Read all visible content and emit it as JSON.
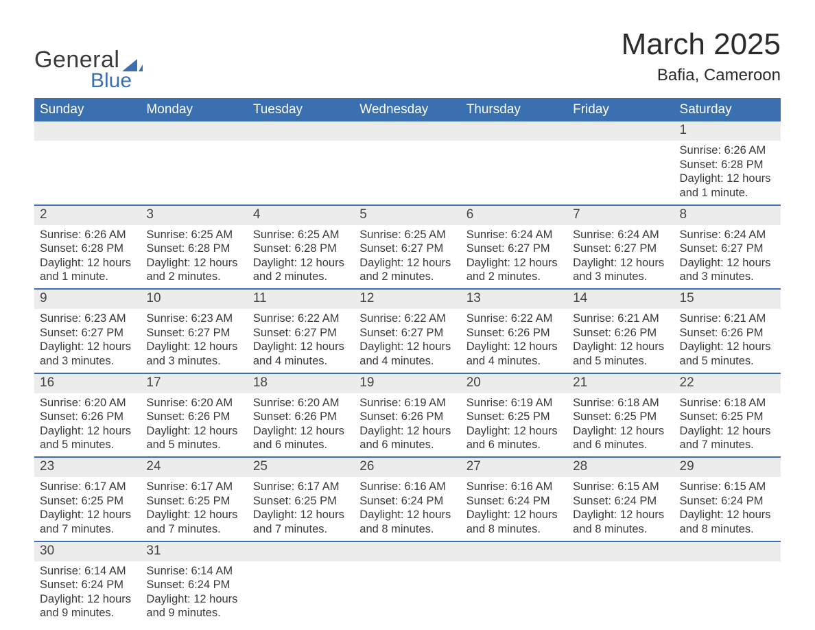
{
  "logo": {
    "text_top": "General",
    "text_bottom": "Blue",
    "accent_color": "#3a6fb0"
  },
  "header": {
    "title": "March 2025",
    "subtitle": "Bafia, Cameroon"
  },
  "styling": {
    "header_bg": "#3a6fb0",
    "header_fg": "#ffffff",
    "daynum_bg": "#ececec",
    "row_divider": "#3a6fb0",
    "body_bg": "#ffffff",
    "text_color": "#3a3a3a",
    "title_fontsize": 44,
    "subtitle_fontsize": 24,
    "header_fontsize": 19,
    "cell_fontsize": 16.5
  },
  "calendar": {
    "columns": [
      "Sunday",
      "Monday",
      "Tuesday",
      "Wednesday",
      "Thursday",
      "Friday",
      "Saturday"
    ],
    "weeks": [
      [
        null,
        null,
        null,
        null,
        null,
        null,
        {
          "n": "1",
          "sr": "Sunrise: 6:26 AM",
          "ss": "Sunset: 6:28 PM",
          "dl1": "Daylight: 12 hours",
          "dl2": "and 1 minute."
        }
      ],
      [
        {
          "n": "2",
          "sr": "Sunrise: 6:26 AM",
          "ss": "Sunset: 6:28 PM",
          "dl1": "Daylight: 12 hours",
          "dl2": "and 1 minute."
        },
        {
          "n": "3",
          "sr": "Sunrise: 6:25 AM",
          "ss": "Sunset: 6:28 PM",
          "dl1": "Daylight: 12 hours",
          "dl2": "and 2 minutes."
        },
        {
          "n": "4",
          "sr": "Sunrise: 6:25 AM",
          "ss": "Sunset: 6:28 PM",
          "dl1": "Daylight: 12 hours",
          "dl2": "and 2 minutes."
        },
        {
          "n": "5",
          "sr": "Sunrise: 6:25 AM",
          "ss": "Sunset: 6:27 PM",
          "dl1": "Daylight: 12 hours",
          "dl2": "and 2 minutes."
        },
        {
          "n": "6",
          "sr": "Sunrise: 6:24 AM",
          "ss": "Sunset: 6:27 PM",
          "dl1": "Daylight: 12 hours",
          "dl2": "and 2 minutes."
        },
        {
          "n": "7",
          "sr": "Sunrise: 6:24 AM",
          "ss": "Sunset: 6:27 PM",
          "dl1": "Daylight: 12 hours",
          "dl2": "and 3 minutes."
        },
        {
          "n": "8",
          "sr": "Sunrise: 6:24 AM",
          "ss": "Sunset: 6:27 PM",
          "dl1": "Daylight: 12 hours",
          "dl2": "and 3 minutes."
        }
      ],
      [
        {
          "n": "9",
          "sr": "Sunrise: 6:23 AM",
          "ss": "Sunset: 6:27 PM",
          "dl1": "Daylight: 12 hours",
          "dl2": "and 3 minutes."
        },
        {
          "n": "10",
          "sr": "Sunrise: 6:23 AM",
          "ss": "Sunset: 6:27 PM",
          "dl1": "Daylight: 12 hours",
          "dl2": "and 3 minutes."
        },
        {
          "n": "11",
          "sr": "Sunrise: 6:22 AM",
          "ss": "Sunset: 6:27 PM",
          "dl1": "Daylight: 12 hours",
          "dl2": "and 4 minutes."
        },
        {
          "n": "12",
          "sr": "Sunrise: 6:22 AM",
          "ss": "Sunset: 6:27 PM",
          "dl1": "Daylight: 12 hours",
          "dl2": "and 4 minutes."
        },
        {
          "n": "13",
          "sr": "Sunrise: 6:22 AM",
          "ss": "Sunset: 6:26 PM",
          "dl1": "Daylight: 12 hours",
          "dl2": "and 4 minutes."
        },
        {
          "n": "14",
          "sr": "Sunrise: 6:21 AM",
          "ss": "Sunset: 6:26 PM",
          "dl1": "Daylight: 12 hours",
          "dl2": "and 5 minutes."
        },
        {
          "n": "15",
          "sr": "Sunrise: 6:21 AM",
          "ss": "Sunset: 6:26 PM",
          "dl1": "Daylight: 12 hours",
          "dl2": "and 5 minutes."
        }
      ],
      [
        {
          "n": "16",
          "sr": "Sunrise: 6:20 AM",
          "ss": "Sunset: 6:26 PM",
          "dl1": "Daylight: 12 hours",
          "dl2": "and 5 minutes."
        },
        {
          "n": "17",
          "sr": "Sunrise: 6:20 AM",
          "ss": "Sunset: 6:26 PM",
          "dl1": "Daylight: 12 hours",
          "dl2": "and 5 minutes."
        },
        {
          "n": "18",
          "sr": "Sunrise: 6:20 AM",
          "ss": "Sunset: 6:26 PM",
          "dl1": "Daylight: 12 hours",
          "dl2": "and 6 minutes."
        },
        {
          "n": "19",
          "sr": "Sunrise: 6:19 AM",
          "ss": "Sunset: 6:26 PM",
          "dl1": "Daylight: 12 hours",
          "dl2": "and 6 minutes."
        },
        {
          "n": "20",
          "sr": "Sunrise: 6:19 AM",
          "ss": "Sunset: 6:25 PM",
          "dl1": "Daylight: 12 hours",
          "dl2": "and 6 minutes."
        },
        {
          "n": "21",
          "sr": "Sunrise: 6:18 AM",
          "ss": "Sunset: 6:25 PM",
          "dl1": "Daylight: 12 hours",
          "dl2": "and 6 minutes."
        },
        {
          "n": "22",
          "sr": "Sunrise: 6:18 AM",
          "ss": "Sunset: 6:25 PM",
          "dl1": "Daylight: 12 hours",
          "dl2": "and 7 minutes."
        }
      ],
      [
        {
          "n": "23",
          "sr": "Sunrise: 6:17 AM",
          "ss": "Sunset: 6:25 PM",
          "dl1": "Daylight: 12 hours",
          "dl2": "and 7 minutes."
        },
        {
          "n": "24",
          "sr": "Sunrise: 6:17 AM",
          "ss": "Sunset: 6:25 PM",
          "dl1": "Daylight: 12 hours",
          "dl2": "and 7 minutes."
        },
        {
          "n": "25",
          "sr": "Sunrise: 6:17 AM",
          "ss": "Sunset: 6:25 PM",
          "dl1": "Daylight: 12 hours",
          "dl2": "and 7 minutes."
        },
        {
          "n": "26",
          "sr": "Sunrise: 6:16 AM",
          "ss": "Sunset: 6:24 PM",
          "dl1": "Daylight: 12 hours",
          "dl2": "and 8 minutes."
        },
        {
          "n": "27",
          "sr": "Sunrise: 6:16 AM",
          "ss": "Sunset: 6:24 PM",
          "dl1": "Daylight: 12 hours",
          "dl2": "and 8 minutes."
        },
        {
          "n": "28",
          "sr": "Sunrise: 6:15 AM",
          "ss": "Sunset: 6:24 PM",
          "dl1": "Daylight: 12 hours",
          "dl2": "and 8 minutes."
        },
        {
          "n": "29",
          "sr": "Sunrise: 6:15 AM",
          "ss": "Sunset: 6:24 PM",
          "dl1": "Daylight: 12 hours",
          "dl2": "and 8 minutes."
        }
      ],
      [
        {
          "n": "30",
          "sr": "Sunrise: 6:14 AM",
          "ss": "Sunset: 6:24 PM",
          "dl1": "Daylight: 12 hours",
          "dl2": "and 9 minutes."
        },
        {
          "n": "31",
          "sr": "Sunrise: 6:14 AM",
          "ss": "Sunset: 6:24 PM",
          "dl1": "Daylight: 12 hours",
          "dl2": "and 9 minutes."
        },
        null,
        null,
        null,
        null,
        null
      ]
    ]
  }
}
